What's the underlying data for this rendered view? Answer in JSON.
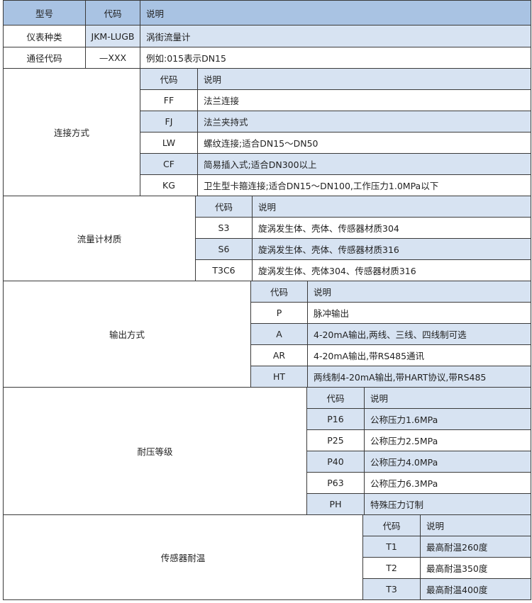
{
  "colors": {
    "header": "#a9c3e3",
    "alt_row": "#d7e3f2",
    "border": "#3a3a3a"
  },
  "top": {
    "header": [
      "型号",
      "代码",
      "说明"
    ],
    "rows": [
      [
        "仪表种类",
        "JKM-LUGB",
        "涡街流量计"
      ],
      [
        "通径代码",
        "—XXX",
        "例如:015表示DN15"
      ]
    ]
  },
  "sub_header": {
    "code": "代码",
    "desc": "说明"
  },
  "sections": [
    {
      "label": "连接方式",
      "rows": [
        [
          "FF",
          "法兰连接"
        ],
        [
          "FJ",
          "法兰夹持式"
        ],
        [
          "LW",
          "螺纹连接;适合DN15～DN50"
        ],
        [
          "CF",
          "简易插入式;适合DN300以上"
        ],
        [
          "KG",
          "卫生型卡箍连接;适合DN15～DN100,工作压力1.0MPa以下"
        ]
      ]
    },
    {
      "label": "流量计材质",
      "rows": [
        [
          "S3",
          "旋涡发生体、壳体、传感器材质304"
        ],
        [
          "S6",
          "旋涡发生体、壳体、传感器材质316"
        ],
        [
          "T3C6",
          "旋涡发生体、壳体304、传感器材质316"
        ]
      ]
    },
    {
      "label": "输出方式",
      "rows": [
        [
          "P",
          "脉冲输出"
        ],
        [
          "A",
          "4-20mA输出,两线、三线、四线制可选"
        ],
        [
          "AR",
          "4-20mA输出,带RS485通讯"
        ],
        [
          "HT",
          "两线制4-20mA输出,带HART协议,带RS485"
        ]
      ]
    },
    {
      "label": "耐压等级",
      "rows": [
        [
          "P16",
          "公称压力1.6MPa"
        ],
        [
          "P25",
          "公称压力2.5MPa"
        ],
        [
          "P40",
          "公称压力4.0MPa"
        ],
        [
          "P63",
          "公称压力6.3MPa"
        ],
        [
          "PH",
          "特殊压力订制"
        ]
      ]
    },
    {
      "label": "传感器耐温",
      "rows": [
        [
          "T1",
          "最高耐温260度"
        ],
        [
          "T2",
          "最高耐温350度"
        ],
        [
          "T3",
          "最高耐温400度"
        ]
      ]
    }
  ]
}
